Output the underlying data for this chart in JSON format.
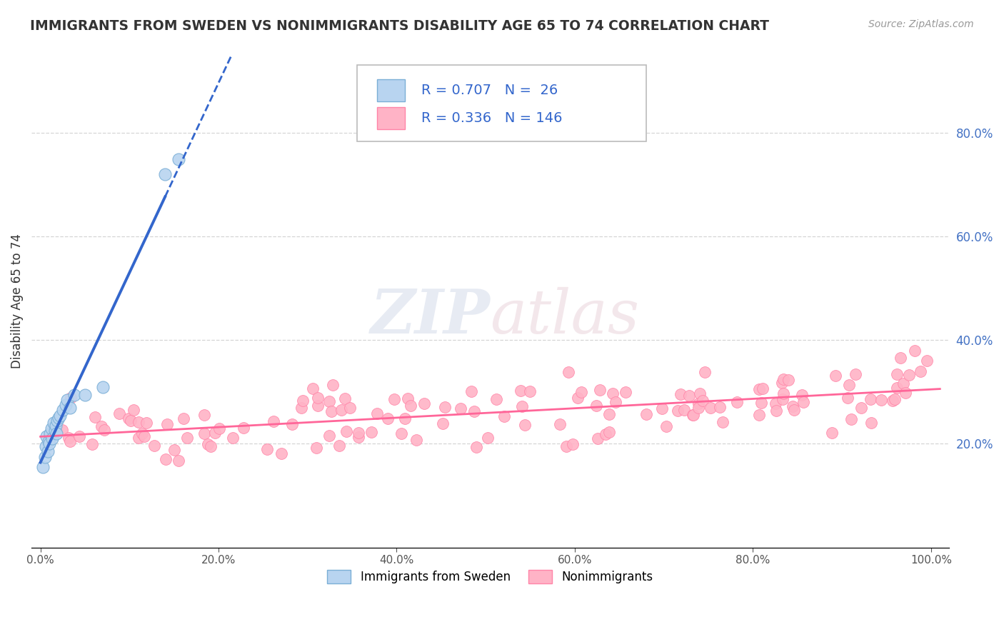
{
  "title": "IMMIGRANTS FROM SWEDEN VS NONIMMIGRANTS DISABILITY AGE 65 TO 74 CORRELATION CHART",
  "source_text": "Source: ZipAtlas.com",
  "ylabel": "Disability Age 65 to 74",
  "sweden_color": "#b8d4f0",
  "sweden_edge_color": "#7bafd6",
  "nonimm_color": "#ffb3c6",
  "nonimm_edge_color": "#ff85a8",
  "sweden_R": 0.707,
  "sweden_N": 26,
  "nonimm_R": 0.336,
  "nonimm_N": 146,
  "legend_label_sweden": "Immigrants from Sweden",
  "legend_label_nonimm": "Nonimmigrants",
  "sweden_line_color": "#3366cc",
  "nonimm_line_color": "#ff6699",
  "title_color": "#333333",
  "axis_label_color": "#333333",
  "stats_color": "#3366cc",
  "grid_color": "#cccccc",
  "background_color": "#ffffff",
  "ytick_color": "#4472c4"
}
